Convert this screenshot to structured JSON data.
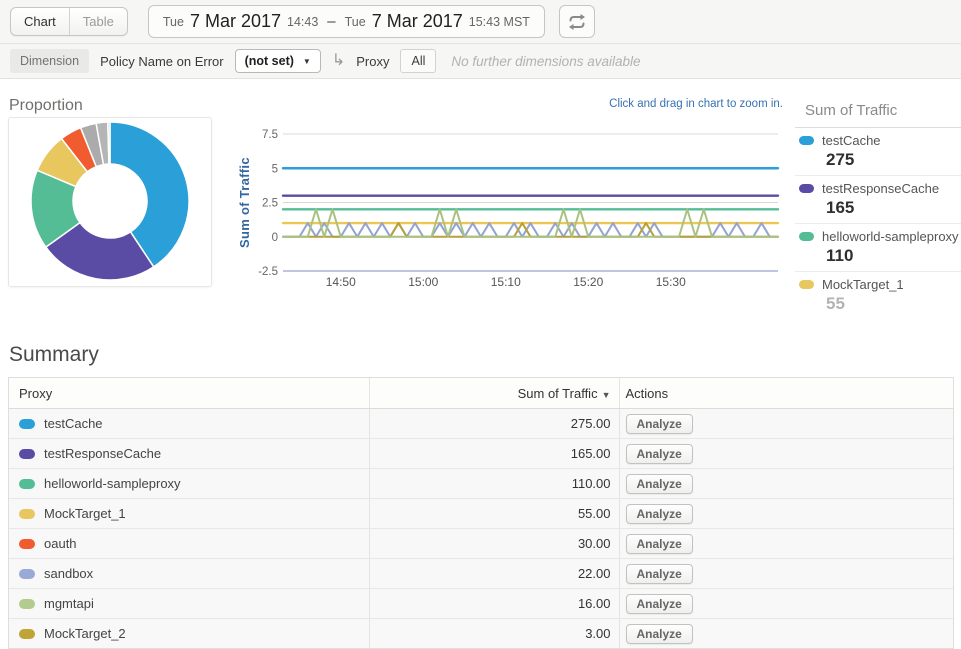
{
  "toolbar": {
    "chart_tab": "Chart",
    "table_tab": "Table",
    "date_range": {
      "start_day": "Tue",
      "start_date": "7 Mar 2017",
      "start_time": "14:43",
      "separator": "–",
      "end_day": "Tue",
      "end_date": "7 Mar 2017",
      "end_time": "15:43 MST"
    }
  },
  "dimension_bar": {
    "dimension_label": "Dimension",
    "policy_label": "Policy Name on Error",
    "policy_value": "(not set)",
    "proxy_label": "Proxy",
    "proxy_value": "All",
    "note": "No further dimensions available"
  },
  "proportion": {
    "title": "Proportion"
  },
  "legend": {
    "title": "Sum of Traffic",
    "items": [
      {
        "name": "testCache",
        "value": "275",
        "color": "#2a9fd8",
        "muted": false
      },
      {
        "name": "testResponseCache",
        "value": "165",
        "color": "#5a4ba5",
        "muted": false
      },
      {
        "name": "helloworld-sampleproxy",
        "value": "110",
        "color": "#55bd96",
        "muted": false
      },
      {
        "name": "MockTarget_1",
        "value": "55",
        "color": "#e9c75f",
        "muted": true
      }
    ]
  },
  "summary": {
    "title": "Summary",
    "columns": [
      "Proxy",
      "Sum of Traffic",
      "Actions"
    ],
    "analyze_label": "Analyze",
    "rows": [
      {
        "name": "testCache",
        "color": "#2a9fd8",
        "value": "275.00"
      },
      {
        "name": "testResponseCache",
        "color": "#5a4ba5",
        "value": "165.00"
      },
      {
        "name": "helloworld-sampleproxy",
        "color": "#55bd96",
        "value": "110.00"
      },
      {
        "name": "MockTarget_1",
        "color": "#e9c75f",
        "value": "55.00"
      },
      {
        "name": "oauth",
        "color": "#f05b2f",
        "value": "30.00"
      },
      {
        "name": "sandbox",
        "color": "#9aaad6",
        "value": "22.00"
      },
      {
        "name": "mgmtapi",
        "color": "#b3cc8e",
        "value": "16.00"
      },
      {
        "name": "MockTarget_2",
        "color": "#bfa437",
        "value": "3.00"
      }
    ]
  },
  "chart_data": [
    {
      "type": "pie",
      "donut": true,
      "title": "Proportion",
      "labels": [
        "testCache",
        "testResponseCache",
        "helloworld-sampleproxy",
        "MockTarget_1",
        "oauth",
        "sandbox",
        "mgmtapi",
        "MockTarget_2"
      ],
      "values": [
        275,
        165,
        110,
        55,
        30,
        22,
        16,
        3
      ],
      "slice_colors": [
        "#2a9fd8",
        "#5a4ba5",
        "#55bd96",
        "#e9c75f",
        "#f05b2f",
        "#ababab",
        "#b5b5b5",
        "#cdcdcd"
      ]
    },
    {
      "type": "line",
      "ylabel": "Sum of Traffic",
      "hint": "Click and drag in chart to zoom in.",
      "time_start": "14:43",
      "time_end": "15:43",
      "ylim": [
        -2.5,
        7.5
      ],
      "grid_color": "#d9d9d9",
      "baseline_color": "#a8b0dc",
      "y_ticks": [
        {
          "label": "7.5",
          "value": 7.5
        },
        {
          "label": "5",
          "value": 5
        },
        {
          "label": "2.5",
          "value": 2.5
        },
        {
          "label": "0",
          "value": 0
        },
        {
          "label": "-2.5",
          "value": -2.5
        }
      ],
      "x_ticks": [
        {
          "label": "14:50",
          "minute": 7
        },
        {
          "label": "15:00",
          "minute": 17
        },
        {
          "label": "15:10",
          "minute": 27
        },
        {
          "label": "15:20",
          "minute": 37
        },
        {
          "label": "15:30",
          "minute": 47
        }
      ],
      "series": [
        {
          "name": "testCache",
          "color": "#2a9fd8",
          "flat": 5
        },
        {
          "name": "testResponseCache",
          "color": "#5a4ba5",
          "flat": 3
        },
        {
          "name": "helloworld-sampleproxy",
          "color": "#55bd96",
          "flat": 2
        },
        {
          "name": "MockTarget_1",
          "color": "#eec753",
          "flat": 1
        },
        {
          "name": "sandbox",
          "color": "#93a3d2",
          "spike_height": 1,
          "spikes": [
            3,
            5,
            8,
            10,
            12,
            14,
            16,
            19,
            21,
            23,
            25,
            28,
            30,
            33,
            35,
            38,
            40,
            43,
            45,
            53,
            55,
            58
          ]
        },
        {
          "name": "MockTarget_2",
          "color": "#b5a039",
          "spike_height": 1,
          "spikes": [
            14,
            29,
            44
          ]
        },
        {
          "name": "mgmtapi",
          "color": "#a9c282",
          "spike_height": 2,
          "spikes": [
            4,
            6,
            19,
            21,
            34,
            36,
            49,
            51
          ]
        }
      ]
    }
  ]
}
